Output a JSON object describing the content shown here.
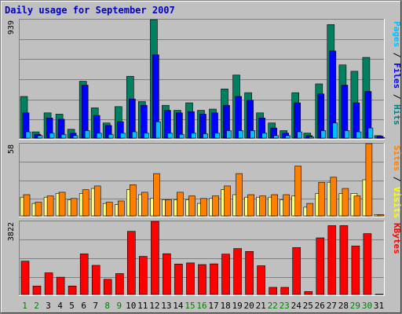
{
  "chart_data": {
    "type": "bar",
    "title": "Daily usage for September 2007",
    "categories": [
      "1",
      "2",
      "3",
      "4",
      "5",
      "6",
      "7",
      "8",
      "9",
      "10",
      "11",
      "12",
      "13",
      "14",
      "15",
      "16",
      "17",
      "18",
      "19",
      "20",
      "21",
      "22",
      "23",
      "24",
      "25",
      "26",
      "27",
      "28",
      "29",
      "30",
      "31"
    ],
    "weekend_days": [
      "1",
      "2",
      "8",
      "9",
      "15",
      "16",
      "22",
      "23",
      "29",
      "30"
    ],
    "panels": [
      {
        "name": "hits_files_pages",
        "max_label": "939",
        "ylim": [
          0,
          939
        ],
        "right_label_parts": [
          {
            "text": "Pages",
            "color": "#00c0ff"
          },
          {
            "text": " / ",
            "color": "#000000"
          },
          {
            "text": "Files",
            "color": "#0000ff"
          },
          {
            "text": " / ",
            "color": "#000000"
          },
          {
            "text": "Hits",
            "color": "#008080"
          }
        ],
        "series": [
          {
            "name": "Hits",
            "color": "#008060",
            "values": [
              330,
              50,
              200,
              190,
              70,
              450,
              240,
              120,
              250,
              490,
              290,
              939,
              260,
              220,
              280,
              220,
              230,
              390,
              500,
              360,
              200,
              120,
              60,
              360,
              40,
              430,
              900,
              580,
              530,
              640,
              20
            ]
          },
          {
            "name": "Files",
            "color": "#0000ff",
            "values": [
              200,
              30,
              160,
              150,
              40,
              420,
              180,
              100,
              130,
              310,
              260,
              660,
              220,
              200,
              210,
              190,
              200,
              260,
              330,
              300,
              160,
              80,
              40,
              280,
              20,
              350,
              690,
              420,
              280,
              370,
              15
            ]
          },
          {
            "name": "Pages",
            "color": "#00c0ff",
            "values": [
              50,
              20,
              40,
              30,
              20,
              60,
              40,
              30,
              40,
              50,
              40,
              130,
              40,
              30,
              40,
              35,
              40,
              60,
              60,
              60,
              40,
              20,
              20,
              50,
              10,
              60,
              120,
              60,
              50,
              80,
              5
            ]
          }
        ]
      },
      {
        "name": "visits_sites",
        "max_label": "58",
        "ylim": [
          0,
          58
        ],
        "right_label_parts": [
          {
            "text": "Sites",
            "color": "#ff8000"
          },
          {
            "text": " / ",
            "color": "#000000"
          },
          {
            "text": "Visits",
            "color": "#ffff00"
          }
        ],
        "series": [
          {
            "name": "Visits",
            "color": "#ffff80",
            "values": [
              15,
              10,
              15,
              18,
              13,
              18,
              22,
              10,
              9,
              21,
              17,
              14,
              13,
              13,
              13,
              10,
              14,
              21,
              17,
              15,
              15,
              15,
              13,
              16,
              7,
              18,
              27,
              18,
              18,
              29,
              1
            ]
          },
          {
            "name": "Sites",
            "color": "#ff8000",
            "values": [
              17,
              11,
              16,
              19,
              14,
              21,
              24,
              11,
              12,
              25,
              19,
              34,
              13,
              19,
              16,
              14,
              16,
              24,
              34,
              17,
              16,
              17,
              17,
              40,
              10,
              27,
              31,
              22,
              16,
              58,
              1
            ]
          }
        ]
      },
      {
        "name": "kbytes",
        "max_label": "3822",
        "ylim": [
          0,
          3822
        ],
        "right_label_parts": [
          {
            "text": "KBytes",
            "color": "#ff0000"
          }
        ],
        "series": [
          {
            "name": "KBytes",
            "color": "#ff0000",
            "values": [
              1740,
              440,
              1130,
              900,
              440,
              2120,
              1520,
              790,
              1090,
              3300,
              1990,
              3822,
              2130,
              1590,
              1650,
              1560,
              1600,
              2110,
              2400,
              2250,
              1500,
              370,
              370,
              2450,
              150,
              2960,
              3600,
              3600,
              2530,
              3180,
              10
            ]
          }
        ]
      }
    ]
  },
  "colors": {
    "background": "#c0c0c0",
    "plot": "#c0c0c0",
    "grid": "#808080",
    "title": "#0000c0",
    "weekday_label": "#000000",
    "weekend_label": "#008000"
  }
}
